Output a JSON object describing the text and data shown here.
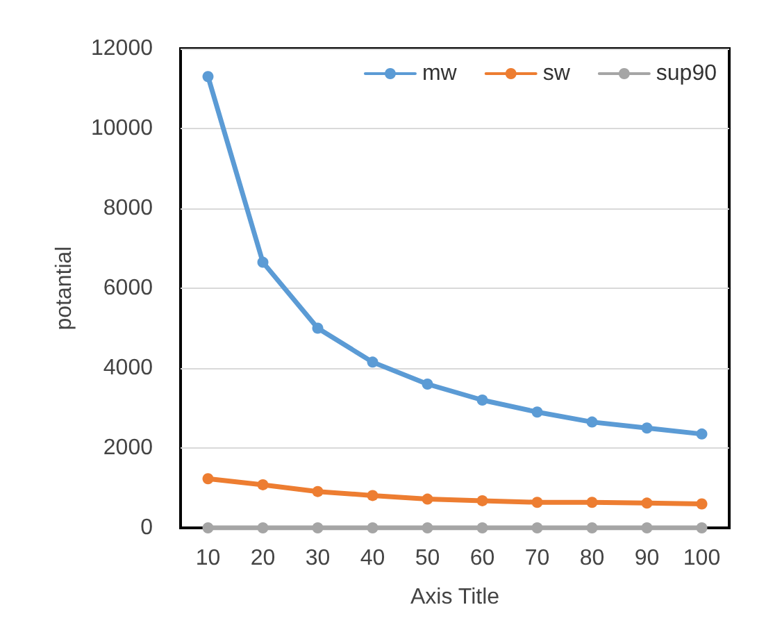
{
  "chart_data": {
    "type": "line",
    "xlabel": "Axis Title",
    "ylabel": "potantial",
    "categories": [
      "10",
      "20",
      "30",
      "40",
      "50",
      "60",
      "70",
      "80",
      "90",
      "100"
    ],
    "series": [
      {
        "name": "mw",
        "color": "#5b9bd5",
        "values": [
          11300,
          6650,
          5000,
          4150,
          3600,
          3200,
          2900,
          2650,
          2500,
          2350
        ]
      },
      {
        "name": "sw",
        "color": "#ed7d31",
        "values": [
          1230,
          1080,
          910,
          810,
          720,
          680,
          640,
          640,
          620,
          600
        ]
      },
      {
        "name": "sup90",
        "color": "#a5a5a5",
        "values": [
          0,
          0,
          0,
          0,
          0,
          0,
          0,
          0,
          0,
          0
        ]
      }
    ],
    "ylim": [
      0,
      12000
    ],
    "yticks": [
      0,
      2000,
      4000,
      6000,
      8000,
      10000,
      12000
    ],
    "grid": "y",
    "legend": "top right",
    "marker": "circle",
    "line_style": "solid"
  }
}
